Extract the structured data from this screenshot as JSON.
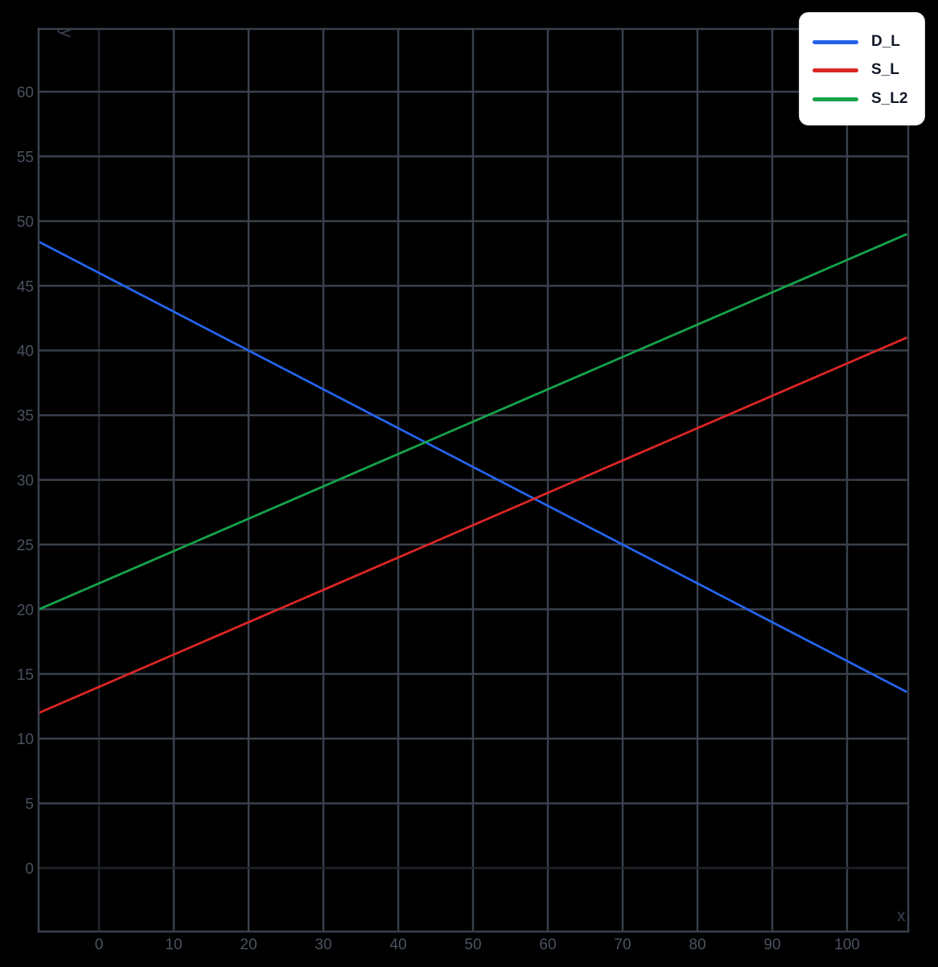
{
  "chart_data": {
    "type": "line",
    "title": "",
    "xlabel": "x",
    "ylabel": "y",
    "xlim": [
      -8,
      108.2
    ],
    "ylim": [
      -4.9,
      64.9
    ],
    "grid": true,
    "legend_position": "top-right",
    "x_ticks": [
      0,
      10,
      20,
      30,
      40,
      50,
      60,
      70,
      80,
      90,
      100
    ],
    "y_ticks": [
      0,
      5,
      10,
      15,
      20,
      25,
      30,
      35,
      40,
      45,
      50,
      55,
      60
    ],
    "series": [
      {
        "name": "D_L",
        "color": "#2563eb",
        "x": [
          -8,
          108
        ],
        "y": [
          48.4,
          13.6
        ],
        "equation": "y = 46 - 0.3x"
      },
      {
        "name": "S_L",
        "color": "#dc2626",
        "x": [
          -8,
          108
        ],
        "y": [
          12,
          41
        ],
        "equation": "y = 14 + 0.25x"
      },
      {
        "name": "S_L2",
        "color": "#16a34a",
        "x": [
          -8,
          108
        ],
        "y": [
          20,
          49
        ],
        "equation": "y = 22 + 0.25x"
      }
    ]
  },
  "legend": {
    "items": [
      {
        "label": "D_L",
        "color": "#2563eb"
      },
      {
        "label": "S_L",
        "color": "#dc2626"
      },
      {
        "label": "S_L2",
        "color": "#16a34a"
      }
    ]
  },
  "axes": {
    "x_title": "x",
    "y_title": "y"
  },
  "colors": {
    "background": "#000000",
    "grid": "#3a414c",
    "zeroline": "#1f242b",
    "tick_text": "#4a5260"
  }
}
